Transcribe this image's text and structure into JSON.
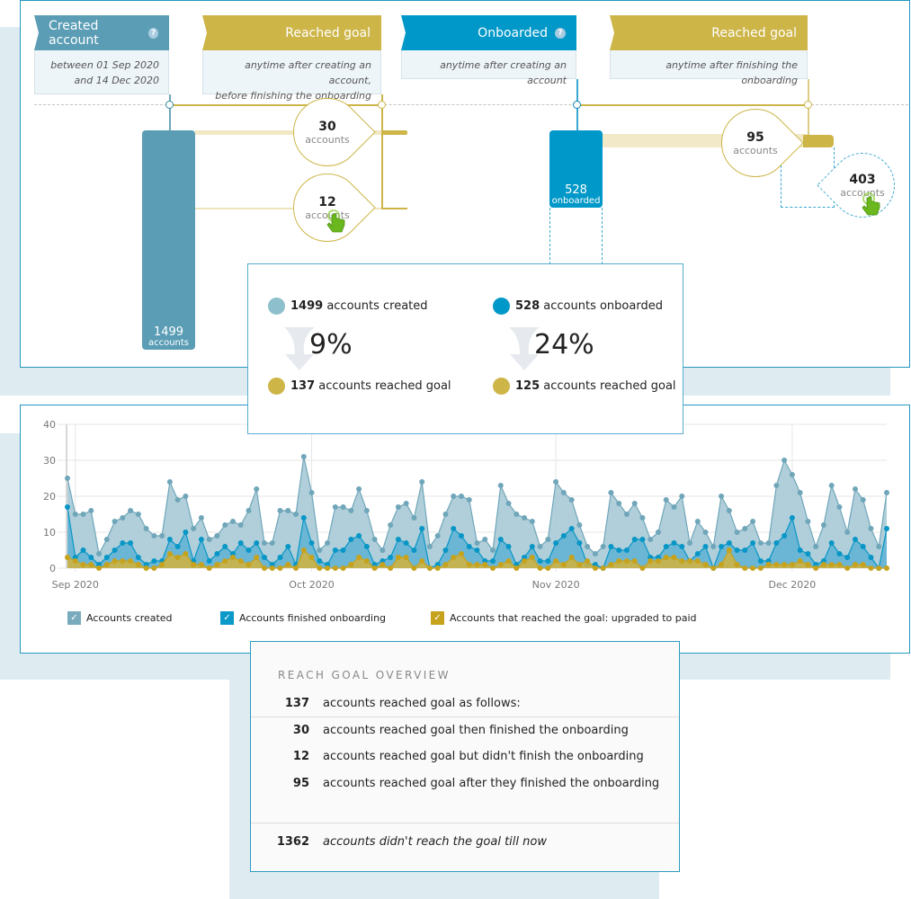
{
  "funnel": {
    "steps": [
      {
        "title": "Created account",
        "help": "?",
        "subtitle_lines": [
          "between 01 Sep 2020",
          "and 14 Dec 2020"
        ],
        "color": "#5a9db5"
      },
      {
        "title": "Reached goal",
        "subtitle_lines": [
          "anytime after creating an account,",
          "before finishing the onboarding"
        ],
        "color": "#cdb548"
      },
      {
        "title": "Onboarded",
        "help": "?",
        "subtitle_lines": [
          "anytime after creating an account"
        ],
        "color": "#0098c8"
      },
      {
        "title": "Reached goal",
        "subtitle_lines": [
          "anytime after finishing the onboarding"
        ],
        "color": "#cdb548"
      }
    ],
    "created_bar": {
      "value": "1499",
      "unit": "accounts"
    },
    "onboarded_bar": {
      "value": "528",
      "unit": "onboarded"
    },
    "drops": {
      "goal_then_onboarded": {
        "value": "30",
        "unit": "accounts"
      },
      "goal_not_onboarded": {
        "value": "12",
        "unit": "accounts"
      },
      "goal_after_onboarded": {
        "value": "95",
        "unit": "accounts"
      },
      "onboarded_no_goal": {
        "value": "403",
        "unit": "accounts"
      }
    }
  },
  "stats": {
    "left": {
      "top_num": "1499",
      "top_text": " accounts created",
      "pct": "9%",
      "bottom_num": "137",
      "bottom_text": " accounts reached goal"
    },
    "right": {
      "top_num": "528",
      "top_text": " accounts onboarded",
      "pct": "24%",
      "bottom_num": "125",
      "bottom_text": " accounts reached goal"
    },
    "colors": {
      "created": "#8dbfcc",
      "onboarded": "#0098c8",
      "goal": "#cdb548"
    }
  },
  "chart_data": {
    "type": "area",
    "ylim": [
      0,
      40
    ],
    "yticks": [
      "0",
      "10",
      "20",
      "30",
      "40"
    ],
    "xticks": [
      {
        "label": "Sep 2020",
        "date": "2020-09-01"
      },
      {
        "label": "Oct 2020",
        "date": "2020-10-01"
      },
      {
        "label": "Nov 2020",
        "date": "2020-11-01"
      },
      {
        "label": "Dec 2020",
        "date": "2020-12-01"
      }
    ],
    "grid": true,
    "legend_placement": "bottom",
    "x": [
      "2020-08-31",
      "2020-09-01",
      "2020-09-02",
      "2020-09-03",
      "2020-09-04",
      "2020-09-05",
      "2020-09-06",
      "2020-09-07",
      "2020-09-08",
      "2020-09-09",
      "2020-09-10",
      "2020-09-11",
      "2020-09-12",
      "2020-09-13",
      "2020-09-14",
      "2020-09-15",
      "2020-09-16",
      "2020-09-17",
      "2020-09-18",
      "2020-09-19",
      "2020-09-20",
      "2020-09-21",
      "2020-09-22",
      "2020-09-23",
      "2020-09-24",
      "2020-09-25",
      "2020-09-26",
      "2020-09-27",
      "2020-09-28",
      "2020-09-29",
      "2020-09-30",
      "2020-10-01",
      "2020-10-02",
      "2020-10-03",
      "2020-10-04",
      "2020-10-05",
      "2020-10-06",
      "2020-10-07",
      "2020-10-08",
      "2020-10-09",
      "2020-10-10",
      "2020-10-11",
      "2020-10-12",
      "2020-10-13",
      "2020-10-14",
      "2020-10-15",
      "2020-10-16",
      "2020-10-17",
      "2020-10-18",
      "2020-10-19",
      "2020-10-20",
      "2020-10-21",
      "2020-10-22",
      "2020-10-23",
      "2020-10-24",
      "2020-10-25",
      "2020-10-26",
      "2020-10-27",
      "2020-10-28",
      "2020-10-29",
      "2020-10-30",
      "2020-10-31",
      "2020-11-01",
      "2020-11-02",
      "2020-11-03",
      "2020-11-04",
      "2020-11-05",
      "2020-11-06",
      "2020-11-07",
      "2020-11-08",
      "2020-11-09",
      "2020-11-10",
      "2020-11-11",
      "2020-11-12",
      "2020-11-13",
      "2020-11-14",
      "2020-11-15",
      "2020-11-16",
      "2020-11-17",
      "2020-11-18",
      "2020-11-19",
      "2020-11-20",
      "2020-11-21",
      "2020-11-22",
      "2020-11-23",
      "2020-11-24",
      "2020-11-25",
      "2020-11-26",
      "2020-11-27",
      "2020-11-28",
      "2020-11-29",
      "2020-11-30",
      "2020-12-01",
      "2020-12-02",
      "2020-12-03",
      "2020-12-04",
      "2020-12-05",
      "2020-12-06",
      "2020-12-07",
      "2020-12-08",
      "2020-12-09",
      "2020-12-10",
      "2020-12-11",
      "2020-12-12",
      "2020-12-13"
    ],
    "series": [
      {
        "name": "Accounts created",
        "fill": "#a9cad6",
        "line": "#6fa6b9",
        "values": [
          25,
          15,
          15,
          16,
          4,
          8,
          13,
          14,
          16,
          15,
          11,
          9,
          9,
          24,
          19,
          20,
          11,
          14,
          8,
          9,
          12,
          13,
          12,
          16,
          22,
          7,
          7,
          16,
          16,
          15,
          31,
          21,
          5,
          7,
          17,
          17,
          16,
          22,
          16,
          8,
          5,
          12,
          17,
          18,
          14,
          24,
          6,
          9,
          15,
          20,
          20,
          19,
          7,
          8,
          5,
          23,
          18,
          15,
          14,
          13,
          6,
          8,
          24,
          21,
          19,
          12,
          6,
          4,
          6,
          21,
          18,
          15,
          18,
          14,
          8,
          10,
          19,
          17,
          20,
          7,
          13,
          10,
          6,
          20,
          16,
          10,
          11,
          13,
          7,
          7,
          23,
          30,
          26,
          21,
          13,
          6,
          12,
          23,
          17,
          10,
          22,
          19,
          11,
          6,
          21
        ]
      },
      {
        "name": "Accounts finished onboarding",
        "fill": "#5fb1d3",
        "line": "#0796c6",
        "values": [
          17,
          3,
          5,
          3,
          1,
          3,
          5,
          7,
          7,
          3,
          1,
          2,
          2,
          8,
          6,
          10,
          2,
          8,
          2,
          4,
          6,
          4,
          7,
          5,
          7,
          3,
          1,
          3,
          6,
          1,
          14,
          7,
          2,
          1,
          5,
          5,
          8,
          9,
          6,
          1,
          2,
          3,
          8,
          7,
          5,
          11,
          0,
          1,
          5,
          11,
          9,
          6,
          5,
          2,
          2,
          8,
          6,
          1,
          3,
          6,
          2,
          2,
          7,
          9,
          11,
          7,
          1,
          1,
          0,
          6,
          5,
          5,
          8,
          8,
          3,
          3,
          6,
          7,
          6,
          2,
          4,
          6,
          0,
          6,
          7,
          5,
          5,
          7,
          2,
          2,
          7,
          9,
          14,
          5,
          4,
          1,
          2,
          7,
          4,
          3,
          8,
          6,
          3,
          0,
          11
        ]
      },
      {
        "name": "Accounts that reached the goal: upgraded to paid",
        "fill": "#d2b33c",
        "line": "#c6a21d",
        "values": [
          3,
          2,
          1,
          1,
          0,
          1,
          2,
          2,
          2,
          1,
          0,
          0,
          1,
          4,
          3,
          4,
          1,
          1,
          0,
          1,
          2,
          3,
          2,
          1,
          3,
          0,
          0,
          0,
          1,
          0,
          5,
          3,
          0,
          0,
          0,
          0,
          1,
          3,
          2,
          0,
          1,
          0,
          3,
          3,
          0,
          2,
          0,
          0,
          1,
          3,
          4,
          1,
          1,
          1,
          0,
          1,
          2,
          0,
          2,
          3,
          0,
          0,
          2,
          1,
          3,
          1,
          2,
          0,
          0,
          1,
          2,
          2,
          2,
          0,
          2,
          2,
          3,
          3,
          2,
          2,
          2,
          1,
          0,
          1,
          5,
          1,
          0,
          0,
          0,
          1,
          1,
          1,
          1,
          2,
          1,
          0,
          1,
          1,
          1,
          0,
          1,
          1,
          0,
          0,
          0
        ]
      }
    ],
    "legend": [
      {
        "label": "Accounts created",
        "color": "#7aabbd"
      },
      {
        "label": "Accounts finished onboarding",
        "color": "#0a99c9"
      },
      {
        "label": "Accounts that reached the goal: upgraded to paid",
        "color": "#c6a21d"
      }
    ]
  },
  "overview": {
    "title": "REACH GOAL OVERVIEW",
    "rows": [
      {
        "num": "137",
        "text": "accounts reached goal as follows:"
      },
      {
        "num": "30",
        "text": "accounts reached goal then finished the onboarding"
      },
      {
        "num": "12",
        "text": "accounts reached goal but didn't finish the onboarding"
      },
      {
        "num": "95",
        "text": "accounts reached goal after they finished the onboarding"
      }
    ],
    "footer": {
      "num": "1362",
      "text": "accounts didn't reach the goal till now"
    }
  },
  "icons": {
    "cursor": "hand-pointer-icon",
    "help": "question-circle-icon",
    "check": "checkmark-icon",
    "arrow": "down-arrow-icon"
  }
}
